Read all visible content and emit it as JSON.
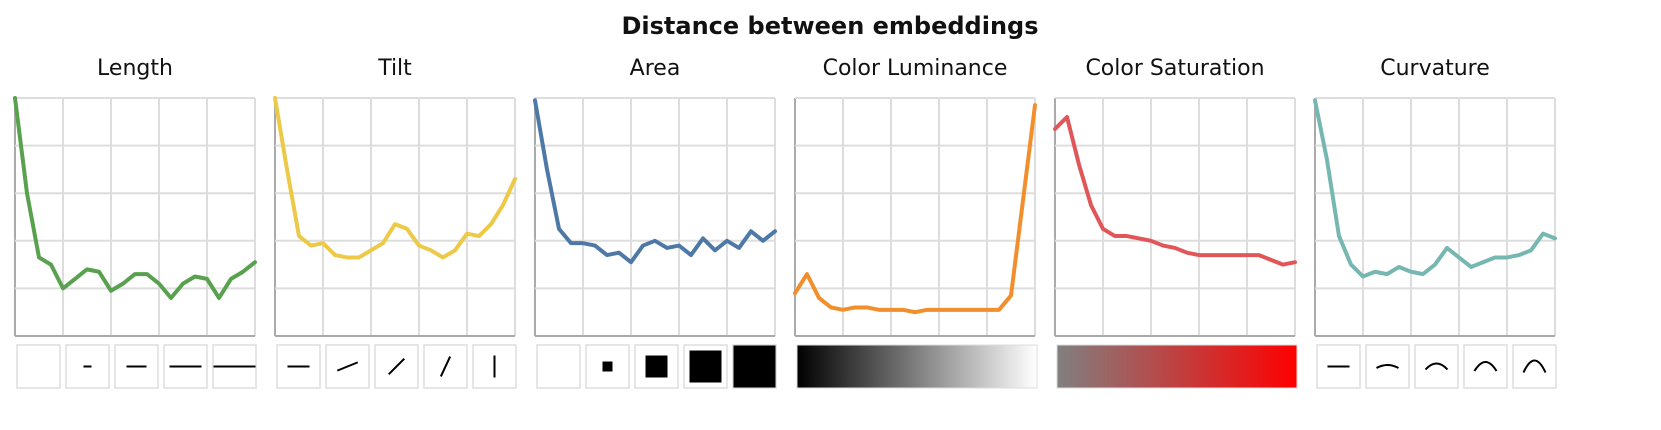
{
  "title": "Distance between embeddings",
  "chart_data": [
    {
      "type": "line",
      "title": "Length",
      "color": "#59a14f",
      "grid": true,
      "x": [
        0,
        5,
        10,
        15,
        20,
        25,
        30,
        35,
        40,
        45,
        50,
        55,
        60,
        65,
        70,
        75,
        80,
        85,
        90,
        95,
        100
      ],
      "values": [
        100,
        60,
        33,
        30,
        20,
        24,
        28,
        27,
        19,
        22,
        26,
        26,
        22,
        16,
        22,
        25,
        24,
        16,
        24,
        27,
        31
      ],
      "xlim": [
        0,
        100
      ],
      "ylim": [
        0,
        100
      ],
      "xticks": [
        0,
        20,
        40,
        60,
        80,
        100
      ],
      "yticks": [
        0,
        20,
        40,
        60,
        80,
        100
      ]
    },
    {
      "type": "line",
      "title": "Tilt",
      "color": "#edc948",
      "grid": true,
      "x": [
        0,
        5,
        10,
        15,
        20,
        25,
        30,
        35,
        40,
        45,
        50,
        55,
        60,
        65,
        70,
        75,
        80,
        85,
        90,
        95,
        100
      ],
      "values": [
        100,
        70,
        42,
        38,
        39,
        34,
        33,
        33,
        36,
        39,
        47,
        45,
        38,
        36,
        33,
        36,
        43,
        42,
        47,
        55,
        66
      ],
      "xlim": [
        0,
        100
      ],
      "ylim": [
        0,
        100
      ],
      "xticks": [
        0,
        20,
        40,
        60,
        80,
        100
      ],
      "yticks": [
        0,
        20,
        40,
        60,
        80,
        100
      ]
    },
    {
      "type": "line",
      "title": "Area",
      "color": "#4e79a7",
      "grid": true,
      "x": [
        0,
        5,
        10,
        15,
        20,
        25,
        30,
        35,
        40,
        45,
        50,
        55,
        60,
        65,
        70,
        75,
        80,
        85,
        90,
        95,
        100
      ],
      "values": [
        99,
        70,
        45,
        39,
        39,
        38,
        34,
        35,
        31,
        38,
        40,
        37,
        38,
        34,
        41,
        36,
        40,
        37,
        44,
        40,
        44
      ],
      "xlim": [
        0,
        100
      ],
      "ylim": [
        0,
        100
      ],
      "xticks": [
        0,
        20,
        40,
        60,
        80,
        100
      ],
      "yticks": [
        0,
        20,
        40,
        60,
        80,
        100
      ]
    },
    {
      "type": "line",
      "title": "Color Luminance",
      "color": "#f28e2b",
      "grid": true,
      "x": [
        0,
        5,
        10,
        15,
        20,
        25,
        30,
        35,
        40,
        45,
        50,
        55,
        60,
        65,
        70,
        75,
        80,
        85,
        90,
        95,
        100
      ],
      "values": [
        18,
        26,
        16,
        12,
        11,
        12,
        12,
        11,
        11,
        11,
        10,
        11,
        11,
        11,
        11,
        11,
        11,
        11,
        17,
        57,
        97
      ],
      "xlim": [
        0,
        100
      ],
      "ylim": [
        0,
        100
      ],
      "xticks": [
        0,
        20,
        40,
        60,
        80,
        100
      ],
      "yticks": [
        0,
        20,
        40,
        60,
        80,
        100
      ]
    },
    {
      "type": "line",
      "title": "Color Saturation",
      "color": "#e15759",
      "grid": true,
      "x": [
        0,
        5,
        10,
        15,
        20,
        25,
        30,
        35,
        40,
        45,
        50,
        55,
        60,
        65,
        70,
        75,
        80,
        85,
        90,
        95,
        100
      ],
      "values": [
        87,
        92,
        72,
        55,
        45,
        42,
        42,
        41,
        40,
        38,
        37,
        35,
        34,
        34,
        34,
        34,
        34,
        34,
        32,
        30,
        31
      ],
      "xlim": [
        0,
        100
      ],
      "ylim": [
        0,
        100
      ],
      "xticks": [
        0,
        20,
        40,
        60,
        80,
        100
      ],
      "yticks": [
        0,
        20,
        40,
        60,
        80,
        100
      ]
    },
    {
      "type": "line",
      "title": "Curvature",
      "color": "#76b7b2",
      "grid": true,
      "x": [
        0,
        5,
        10,
        15,
        20,
        25,
        30,
        35,
        40,
        45,
        50,
        55,
        60,
        65,
        70,
        75,
        80,
        85,
        90,
        95,
        100
      ],
      "values": [
        99,
        74,
        42,
        30,
        25,
        27,
        26,
        29,
        27,
        26,
        30,
        37,
        33,
        29,
        31,
        33,
        33,
        34,
        36,
        43,
        41
      ],
      "xlim": [
        0,
        100
      ],
      "ylim": [
        0,
        100
      ],
      "xticks": [
        0,
        20,
        40,
        60,
        80,
        100
      ],
      "yticks": [
        0,
        20,
        40,
        60,
        80,
        100
      ]
    }
  ]
}
